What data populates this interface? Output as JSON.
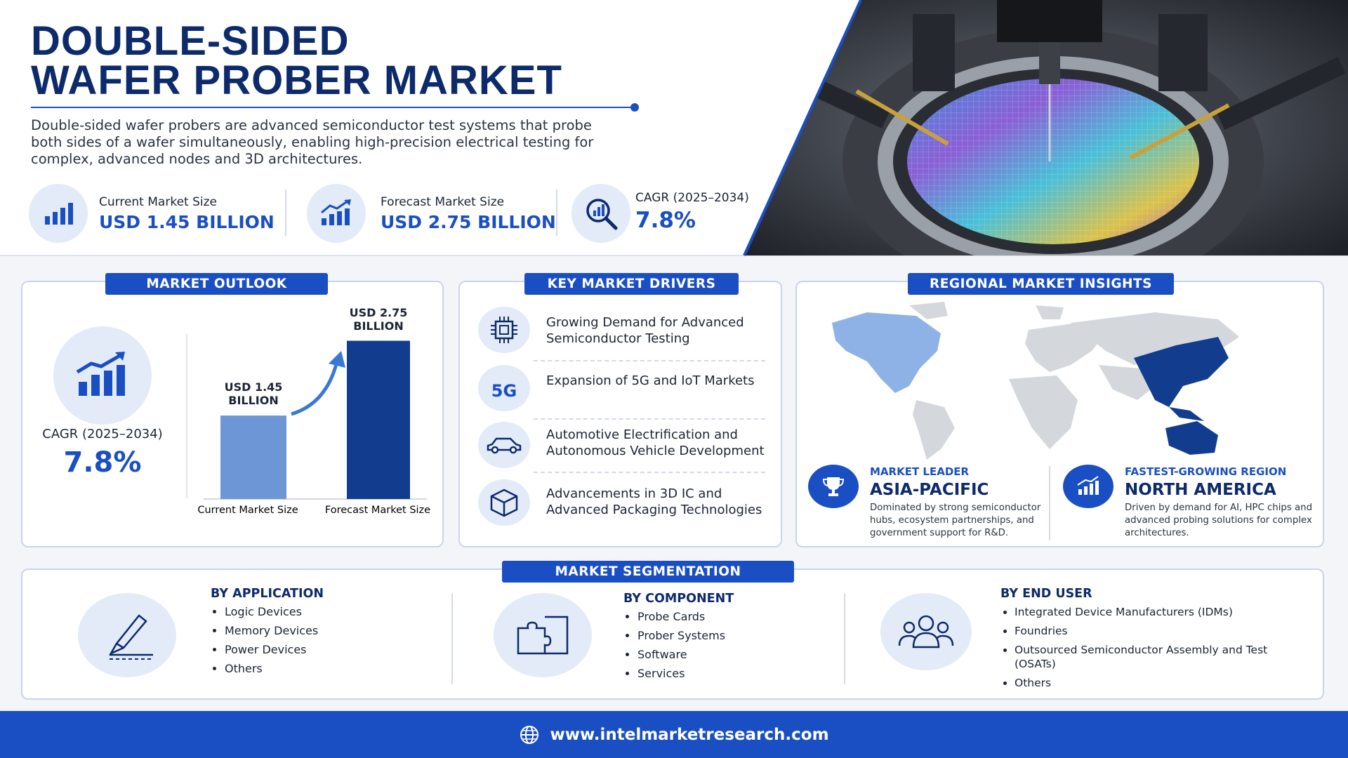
{
  "header": {
    "title_line1": "DOUBLE-SIDED",
    "title_line2": "WAFER PROBER MARKET",
    "description": "Double-sided wafer probers are advanced semiconductor test systems that probe both sides of a wafer simultaneously, enabling high-precision electrical testing for complex, advanced nodes and 3D architectures."
  },
  "stats": [
    {
      "label": "Current Market Size",
      "value": "USD 1.45 BILLION"
    },
    {
      "label": "Forecast Market Size",
      "value": "USD 2.75 BILLION"
    },
    {
      "label": "CAGR (2025–2034)",
      "value": "7.8%"
    }
  ],
  "market_outlook": {
    "title": "MARKET OUTLOOK",
    "cagr_label": "CAGR (2025–2034)",
    "cagr_value": "7.8%",
    "chart": {
      "type": "bar",
      "categories": [
        "Current Market Size",
        "Forecast Market Size"
      ],
      "values": [
        1.45,
        2.75
      ],
      "value_labels": [
        "USD 1.45 BILLION",
        "USD 2.75 BILLION"
      ],
      "colors": [
        "#6d96d6",
        "#123d8f"
      ]
    }
  },
  "key_drivers": {
    "title": "KEY MARKET DRIVERS",
    "icon_5g": "5G",
    "items": [
      "Growing Demand for Advanced Semiconductor Testing",
      "Expansion of 5G and IoT Markets",
      "Automotive Electrification and Autonomous Vehicle Development",
      "Advancements in 3D IC and Advanced Packaging Technologies"
    ]
  },
  "regional": {
    "title": "REGIONAL MARKET INSIGHTS",
    "leader": {
      "label": "MARKET LEADER",
      "name": "ASIA-PACIFIC",
      "description": "Dominated by strong semiconductor hubs, ecosystem partnerships, and government support for R&D."
    },
    "fastest": {
      "label": "FASTEST-GROWING REGION",
      "name": "NORTH AMERICA",
      "description": "Driven by demand for AI, HPC chips and advanced probing solutions for complex architectures."
    }
  },
  "segmentation": {
    "title": "MARKET SEGMENTATION",
    "groups": [
      {
        "title": "BY APPLICATION",
        "items": [
          "Logic Devices",
          "Memory Devices",
          "Power Devices",
          "Others"
        ]
      },
      {
        "title": "BY COMPONENT",
        "items": [
          "Probe Cards",
          "Prober Systems",
          "Software",
          "Services"
        ]
      },
      {
        "title": "BY END USER",
        "items": [
          "Integrated Device Manufacturers (IDMs)",
          "Foundries",
          "Outsourced Semiconductor Assembly and Test (OSATs)",
          "Others"
        ]
      }
    ]
  },
  "footer": {
    "url": "www.intelmarketresearch.com"
  }
}
